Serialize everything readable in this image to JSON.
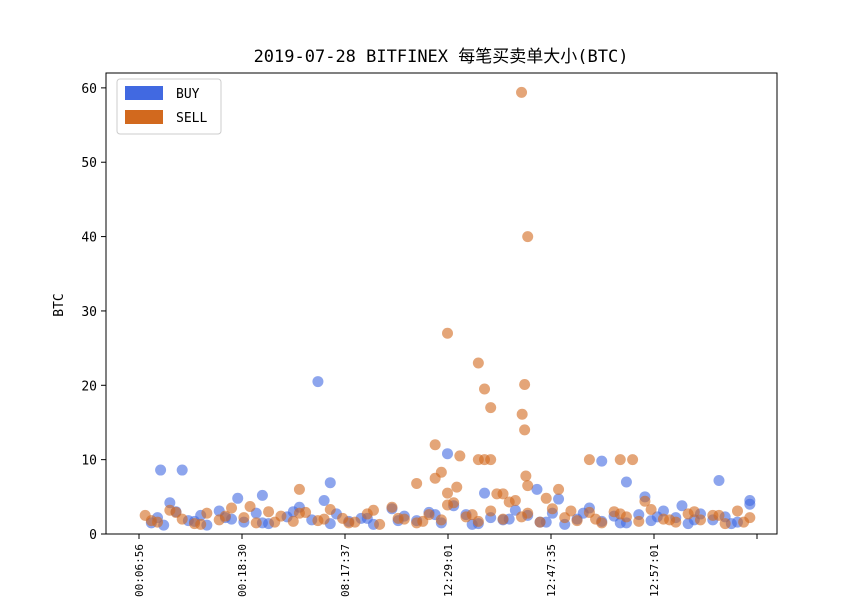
{
  "chart_data": {
    "type": "scatter",
    "title": "2019-07-28 BITFINEX 每笔买卖单大小(BTC)",
    "xlabel": "",
    "ylabel": "BTC",
    "ylim": [
      0,
      62
    ],
    "yticks": [
      0,
      10,
      20,
      30,
      40,
      50,
      60
    ],
    "xtick_labels": [
      "00:06:56",
      "00:18:30",
      "08:17:37",
      "12:29:01",
      "12:47:35",
      "12:57:01",
      ""
    ],
    "legend": "upper-left",
    "series": [
      {
        "name": "BUY",
        "color": "#4169e1",
        "x": [
          0.02,
          0.03,
          0.05,
          0.06,
          0.08,
          0.1,
          0.11,
          0.13,
          0.15,
          0.17,
          0.19,
          0.21,
          0.24,
          0.26,
          0.28,
          0.3,
          0.32,
          0.34,
          0.36,
          0.38,
          0.41,
          0.43,
          0.45,
          0.47,
          0.49,
          0.51,
          0.53,
          0.55,
          0.57,
          0.59,
          0.61,
          0.63,
          0.65,
          0.67,
          0.69,
          0.71,
          0.73,
          0.75,
          0.77,
          0.79,
          0.81,
          0.83,
          0.85,
          0.87,
          0.89,
          0.91,
          0.93,
          0.95,
          0.97,
          0.99,
          0.04,
          0.09,
          0.14,
          0.2,
          0.25,
          0.31,
          0.37,
          0.42,
          0.48,
          0.54,
          0.6,
          0.66,
          0.72,
          0.78,
          0.84,
          0.9,
          0.96,
          0.035,
          0.07,
          0.29,
          0.31,
          0.5,
          0.645,
          0.75,
          0.79,
          0.82,
          0.94,
          0.99,
          0.2,
          0.16,
          0.56,
          0.68,
          0.88
        ],
        "y": [
          1.5,
          2.2,
          4.2,
          3.0,
          1.8,
          2.5,
          1.2,
          3.1,
          2.0,
          1.6,
          2.8,
          1.4,
          2.3,
          3.6,
          1.9,
          4.5,
          2.7,
          1.7,
          2.1,
          1.3,
          3.4,
          2.4,
          1.8,
          2.9,
          1.5,
          3.8,
          2.6,
          1.4,
          2.2,
          1.9,
          3.2,
          2.5,
          1.6,
          2.8,
          1.3,
          2.0,
          3.5,
          1.7,
          2.4,
          1.5,
          2.6,
          1.8,
          3.1,
          2.2,
          1.4,
          2.7,
          1.9,
          2.3,
          1.6,
          4.5,
          1.2,
          1.7,
          2.2,
          1.5,
          3.0,
          1.4,
          2.1,
          1.8,
          2.6,
          1.3,
          2.0,
          1.6,
          2.8,
          1.5,
          2.3,
          1.9,
          1.4,
          8.6,
          8.6,
          20.5,
          6.9,
          10.8,
          6.0,
          9.8,
          7.0,
          5.0,
          7.2,
          4.0,
          5.2,
          4.8,
          5.5,
          4.7,
          3.8
        ]
      },
      {
        "name": "SELL",
        "color": "#d2691e",
        "x": [
          0.01,
          0.03,
          0.05,
          0.07,
          0.09,
          0.11,
          0.13,
          0.15,
          0.17,
          0.19,
          0.21,
          0.23,
          0.25,
          0.27,
          0.29,
          0.31,
          0.33,
          0.35,
          0.37,
          0.39,
          0.41,
          0.43,
          0.45,
          0.47,
          0.49,
          0.51,
          0.53,
          0.55,
          0.57,
          0.59,
          0.61,
          0.63,
          0.65,
          0.67,
          0.69,
          0.71,
          0.73,
          0.75,
          0.77,
          0.79,
          0.81,
          0.83,
          0.85,
          0.87,
          0.89,
          0.91,
          0.93,
          0.95,
          0.97,
          0.99,
          0.02,
          0.06,
          0.1,
          0.14,
          0.18,
          0.22,
          0.26,
          0.3,
          0.34,
          0.38,
          0.42,
          0.46,
          0.5,
          0.54,
          0.58,
          0.62,
          0.66,
          0.7,
          0.74,
          0.78,
          0.82,
          0.86,
          0.9,
          0.94,
          0.98,
          0.5,
          0.52,
          0.55,
          0.56,
          0.57,
          0.62,
          0.63,
          0.625,
          0.621,
          0.625,
          0.627,
          0.55,
          0.56,
          0.57,
          0.48,
          0.49,
          0.48,
          0.73,
          0.78,
          0.8,
          0.68,
          0.26,
          0.45,
          0.63,
          0.515,
          0.59,
          0.6,
          0.5
        ],
        "y": [
          2.5,
          1.6,
          3.2,
          2.0,
          1.4,
          2.8,
          1.9,
          3.5,
          2.2,
          1.5,
          3.0,
          2.4,
          1.7,
          2.9,
          1.8,
          3.3,
          2.1,
          1.6,
          2.7,
          1.3,
          3.6,
          2.0,
          1.5,
          2.6,
          1.9,
          4.2,
          2.3,
          1.7,
          3.1,
          2.0,
          4.5,
          2.8,
          1.6,
          3.4,
          2.2,
          1.8,
          2.9,
          1.5,
          3.0,
          2.3,
          1.7,
          3.3,
          2.0,
          1.6,
          2.7,
          1.9,
          2.5,
          1.4,
          3.1,
          2.2,
          1.8,
          2.9,
          1.3,
          2.4,
          3.7,
          1.6,
          2.8,
          2.0,
          1.5,
          3.2,
          2.1,
          1.7,
          3.9,
          2.6,
          5.4,
          2.3,
          4.8,
          3.1,
          2.0,
          2.7,
          4.4,
          1.9,
          3.0,
          2.5,
          1.6,
          27,
          10.5,
          23,
          19.5,
          17,
          59.4,
          40,
          20.1,
          16.1,
          14,
          7.8,
          10,
          10,
          10,
          12,
          8.3,
          7.5,
          10,
          10,
          10,
          6,
          6,
          6.8,
          6.5,
          6.3,
          5.4,
          4.3,
          5.5
        ]
      }
    ]
  }
}
